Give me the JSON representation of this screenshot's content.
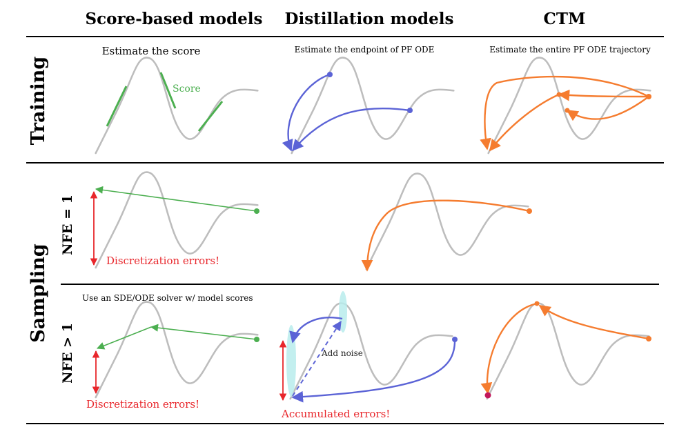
{
  "columns": {
    "score_based": "Score-based models",
    "distillation": "Distillation models",
    "ctm": "CTM"
  },
  "rows": {
    "training": "Training",
    "sampling": "Sampling",
    "nfe_one": "NFE = 1",
    "nfe_many": "NFE > 1"
  },
  "captions": {
    "estimate_score": "Estimate the score",
    "estimate_endpoint": "Estimate the endpoint of PF ODE",
    "estimate_trajectory": "Estimate the entire PF ODE trajectory",
    "score_label": "Score",
    "sde_solver": "Use an SDE/ODE solver w/ model scores",
    "add_noise": "Add noise"
  },
  "errors": {
    "discretization_1": "Discretization errors!",
    "discretization_2": "Discretization errors!",
    "accumulated": "Accumulated errors!"
  },
  "colors": {
    "curve": "#bdbdbd",
    "score_green": "#4caf50",
    "distill_blue": "#5b63d6",
    "ctm_orange": "#f57c2f",
    "error_red": "#e8262b",
    "noise_cyan": "#b8ecec",
    "endpoint_magenta": "#c2185b"
  }
}
